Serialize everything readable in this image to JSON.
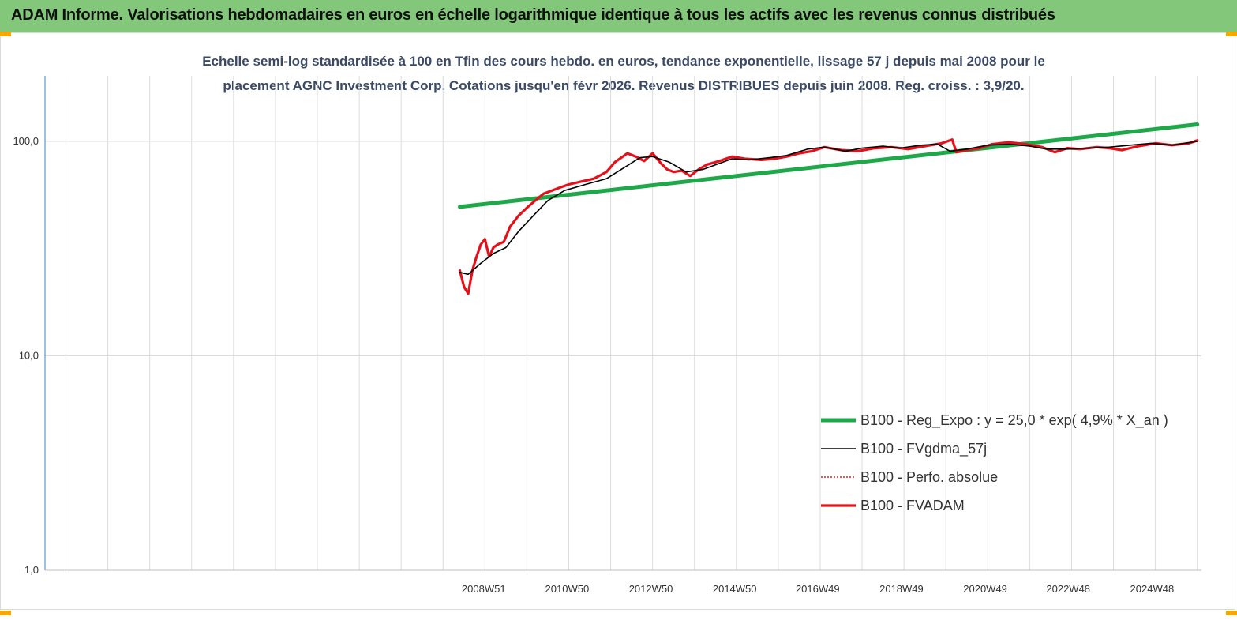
{
  "header": {
    "title": "ADAM Informe. Valorisations hebdomadaires en euros en échelle logarithmique identique à tous les actifs avec les revenus connus distribués"
  },
  "colors": {
    "header_bg": "#82c77a",
    "reg_expo": "#1fa84a",
    "fvgdma": "#000000",
    "perfo": "#e0201b",
    "fvadam": "#e5101a",
    "handle": "#f5a800"
  },
  "chart_data": {
    "type": "line",
    "title_line1": "Echelle semi-log standardisée à 100 en Tfin des cours hebdo. en euros, tendance exponentielle, lissage 57 j depuis mai 2008 pour le",
    "title_line2": "placement AGNC Investment Corp. Cotations jusqu'en févr 2026. Revenus DISTRIBUES depuis juin 2008. Reg. croiss. : 3,9/20.",
    "y_scale": "log",
    "ylim": [
      1,
      200
    ],
    "y_ticks": [
      {
        "value": 100,
        "label": "100,0"
      },
      {
        "value": 10,
        "label": "10,0"
      },
      {
        "value": 1,
        "label": "1,0"
      }
    ],
    "x_range": [
      1998.5,
      2026.1
    ],
    "x_ticks": [
      {
        "x": 2008.97,
        "label": "2008W51"
      },
      {
        "x": 2010.96,
        "label": "2010W50"
      },
      {
        "x": 2012.96,
        "label": "2012W50"
      },
      {
        "x": 2014.96,
        "label": "2014W50"
      },
      {
        "x": 2016.94,
        "label": "2016W49"
      },
      {
        "x": 2018.94,
        "label": "2018W49"
      },
      {
        "x": 2020.94,
        "label": "2020W49"
      },
      {
        "x": 2022.92,
        "label": "2022W48"
      },
      {
        "x": 2024.92,
        "label": "2024W48"
      }
    ],
    "grid_x": true,
    "grid_y": true,
    "legend_position": "bottom-right",
    "series": [
      {
        "name": "B100 - Reg_Expo : y = 25,0 * exp( 4,9% *  X_an )",
        "style": "thick-green",
        "x": [
          2008.4,
          2026.0
        ],
        "y": [
          49.5,
          120
        ]
      },
      {
        "name": "B100 - FVgdma_57j",
        "style": "thin-black",
        "x": [
          2008.4,
          2008.6,
          2008.9,
          2009.2,
          2009.5,
          2009.8,
          2010.2,
          2010.5,
          2010.9,
          2011.4,
          2011.9,
          2012.3,
          2012.7,
          2013.0,
          2013.4,
          2013.8,
          2014.2,
          2014.6,
          2014.9,
          2015.3,
          2015.8,
          2016.2,
          2016.7,
          2017.1,
          2017.6,
          2018.0,
          2018.5,
          2018.9,
          2019.4,
          2019.8,
          2020.1,
          2020.5,
          2021.0,
          2021.5,
          2022.0,
          2022.4,
          2022.9,
          2023.4,
          2023.9,
          2024.4,
          2024.9,
          2025.4,
          2026.0
        ],
        "y": [
          24.5,
          24,
          27,
          30,
          32,
          38,
          46,
          53,
          59,
          63,
          67,
          75,
          84,
          85,
          80,
          72,
          74,
          79,
          83,
          82,
          84,
          86,
          92,
          94,
          90,
          93,
          95,
          93,
          96,
          97,
          90,
          92,
          96,
          97,
          95,
          92,
          92,
          93,
          94,
          96,
          98,
          96,
          100
        ]
      },
      {
        "name": "B100 - Perfo. absolue",
        "style": "dotted-red",
        "x": [],
        "y": []
      },
      {
        "name": "B100 - FVADAM",
        "style": "thick-red",
        "x": [
          2008.4,
          2008.5,
          2008.6,
          2008.7,
          2008.8,
          2008.9,
          2009.0,
          2009.1,
          2009.2,
          2009.3,
          2009.45,
          2009.6,
          2009.8,
          2010.0,
          2010.2,
          2010.4,
          2010.6,
          2010.8,
          2011.0,
          2011.3,
          2011.6,
          2011.9,
          2012.1,
          2012.4,
          2012.6,
          2012.8,
          2013.0,
          2013.2,
          2013.35,
          2013.5,
          2013.7,
          2013.9,
          2014.1,
          2014.3,
          2014.6,
          2014.9,
          2015.2,
          2015.6,
          2015.9,
          2016.2,
          2016.5,
          2016.8,
          2017.1,
          2017.5,
          2017.9,
          2018.3,
          2018.7,
          2019.1,
          2019.5,
          2019.9,
          2020.15,
          2020.25,
          2020.5,
          2020.8,
          2021.1,
          2021.5,
          2021.9,
          2022.3,
          2022.6,
          2022.9,
          2023.2,
          2023.6,
          2023.9,
          2024.2,
          2024.6,
          2025.0,
          2025.4,
          2025.8,
          2026.0
        ],
        "y": [
          25,
          21,
          19.5,
          25,
          29,
          33,
          35,
          29,
          32,
          33,
          34,
          40,
          45,
          49,
          53,
          57,
          59,
          61,
          63,
          65,
          67,
          72,
          80,
          88,
          85,
          81,
          88,
          79,
          74,
          72,
          73,
          69,
          74,
          78,
          81,
          85,
          83,
          82,
          83,
          85,
          88,
          90,
          94,
          91,
          90,
          93,
          94,
          92,
          95,
          98,
          102,
          89,
          91,
          93,
          97,
          99,
          97,
          94,
          89,
          93,
          92,
          94,
          93,
          91,
          95,
          98,
          96,
          98,
          101
        ]
      }
    ]
  }
}
